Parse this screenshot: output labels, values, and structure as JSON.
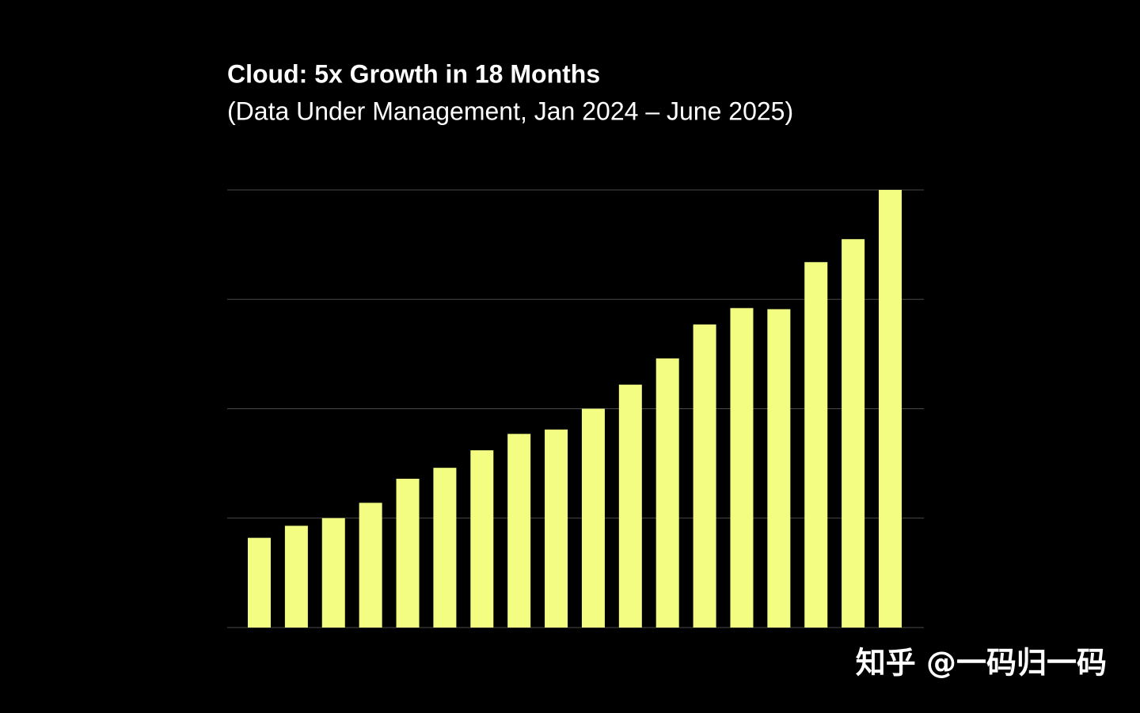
{
  "chart_data": {
    "type": "bar",
    "title": "Cloud: 5x Growth in 18 Months",
    "subtitle": "(Data Under Management, Jan 2024 – June 2025)",
    "categories": [
      null,
      null,
      null,
      null,
      null,
      null,
      null,
      null,
      null,
      null,
      null,
      null,
      null,
      null,
      null,
      null,
      null,
      null
    ],
    "values": [
      0.82,
      0.93,
      1.0,
      1.14,
      1.36,
      1.46,
      1.62,
      1.77,
      1.81,
      2.0,
      2.22,
      2.46,
      2.77,
      2.92,
      2.91,
      3.34,
      3.55,
      4.0
    ],
    "color": "#f2fd82",
    "ylim": [
      0,
      4
    ],
    "yticks": [
      0,
      1,
      2,
      3,
      4
    ],
    "grid": true,
    "watermark": "知乎 @一码归一码"
  }
}
